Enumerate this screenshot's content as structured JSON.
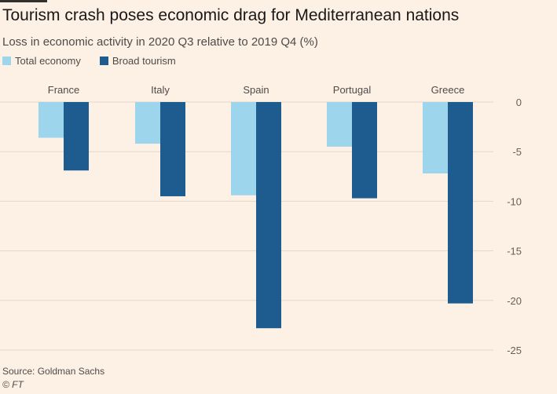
{
  "chart_data": {
    "type": "bar",
    "title": "Tourism crash poses economic drag for Mediterranean nations",
    "subtitle": "Loss in economic activity in 2020 Q3 relative to 2019 Q4 (%)",
    "categories": [
      "France",
      "Italy",
      "Spain",
      "Portugal",
      "Greece"
    ],
    "series": [
      {
        "name": "Total economy",
        "color": "#9cd5ec",
        "values": [
          -3.6,
          -4.2,
          -9.4,
          -4.5,
          -7.2
        ]
      },
      {
        "name": "Broad tourism",
        "color": "#1e5b8f",
        "values": [
          -6.9,
          -9.5,
          -22.8,
          -9.7,
          -20.3
        ]
      }
    ],
    "ylim": [
      -25,
      0
    ],
    "yticks": [
      0,
      -5,
      -10,
      -15,
      -20,
      -25
    ],
    "ytick_labels": [
      "0",
      "-5",
      "-10",
      "-15",
      "-20",
      "-25"
    ],
    "xlabel": "",
    "ylabel": "",
    "grid": true,
    "legend": "top-left",
    "gridline_color": "#e3d7cc",
    "source": "Source: Goldman Sachs",
    "credit": "© FT"
  }
}
